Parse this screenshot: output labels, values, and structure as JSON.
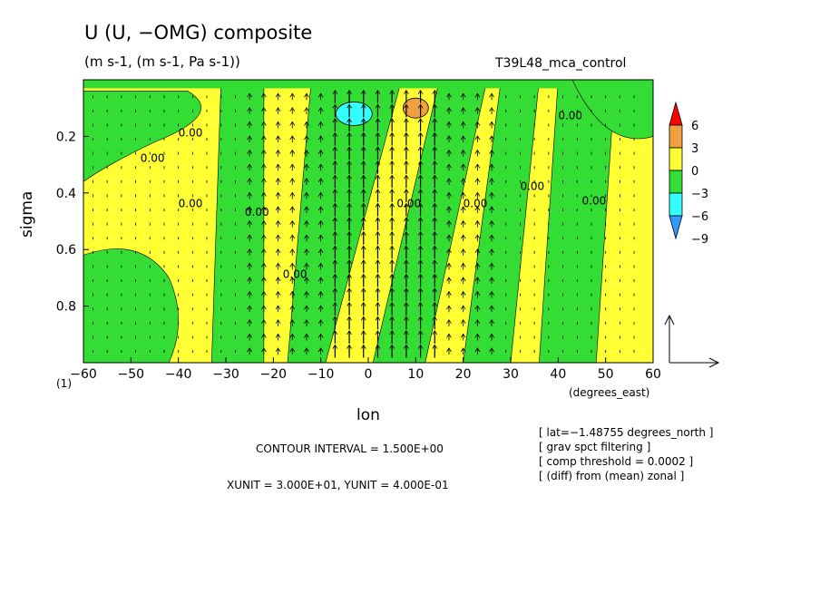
{
  "header": {
    "title": "U (U, −OMG) composite",
    "units": "(m s-1, (m s-1, Pa s-1))",
    "run_name": "T39L48_mca_control"
  },
  "footer": {
    "contour_interval": "CONTOUR INTERVAL = 1.500E+00",
    "vector_units": "XUNIT = 3.000E+01, YUNIT = 4.000E-01",
    "notes": [
      "[ lat=−1.48755 degrees_north ]",
      "[ grav spct filtering ]",
      "[ comp threshold = 0.0002 ]",
      "[ (diff) from (mean) zonal ]"
    ],
    "panel_index": "(1)"
  },
  "colors": {
    "bright_red": "#ff0000",
    "orange": "#f0a040",
    "yellow": "#ffff33",
    "green": "#33dd33",
    "cyan": "#33ffff",
    "blue": "#3399ff"
  },
  "chart_data": {
    "type": "contour-vector",
    "x_label": "lon",
    "x_unit_label": "(degrees_east)",
    "y_label": "sigma",
    "x_range": [
      -60,
      60
    ],
    "y_range": [
      1.0,
      0.0
    ],
    "y_reversed": true,
    "x_ticks": [
      -60,
      -50,
      -40,
      -30,
      -20,
      -10,
      0,
      10,
      20,
      30,
      40,
      50,
      60
    ],
    "x_tick_labels": [
      "−60",
      "−50",
      "−40",
      "−30",
      "−20",
      "−10",
      "0",
      "10",
      "20",
      "30",
      "40",
      "50",
      "60"
    ],
    "y_ticks": [
      0.2,
      0.4,
      0.6,
      0.8
    ],
    "y_tick_labels": [
      "0.2",
      "0.4",
      "0.6",
      "0.8"
    ],
    "contour_interval": 1.5,
    "contour_label": "0.00",
    "colorbar": {
      "levels": [
        6,
        3,
        0,
        -3,
        -6,
        -9
      ],
      "level_labels": [
        "6",
        "3",
        "0",
        "−3",
        "−6",
        "−9"
      ],
      "colors": [
        "#ff0000",
        "#f0a040",
        "#ffff33",
        "#33dd33",
        "#33ffff",
        "#3399ff"
      ]
    },
    "green_bands": [
      {
        "top_x": [
          -31,
          -22
        ],
        "bottom_x": [
          -33,
          -22
        ]
      },
      {
        "top_x": [
          -12,
          7
        ],
        "bottom_x": [
          -17,
          -9
        ]
      },
      {
        "top_x": [
          15,
          25
        ],
        "bottom_x": [
          1,
          12
        ]
      },
      {
        "top_x": [
          28,
          36
        ],
        "bottom_x": [
          20,
          30
        ]
      },
      {
        "top_x": [
          40,
          52
        ],
        "bottom_x": [
          36,
          48
        ]
      }
    ],
    "annotations": {
      "cyan_extremum": {
        "lon": -3,
        "sigma": 0.12
      },
      "orange_extremum": {
        "lon": 10,
        "sigma": 0.1
      }
    },
    "vector_field": {
      "strong_upward_lons": [
        -8,
        -5,
        -2,
        1,
        4,
        7,
        10,
        13
      ],
      "reference_x": 30.0,
      "reference_y": 0.4
    }
  }
}
